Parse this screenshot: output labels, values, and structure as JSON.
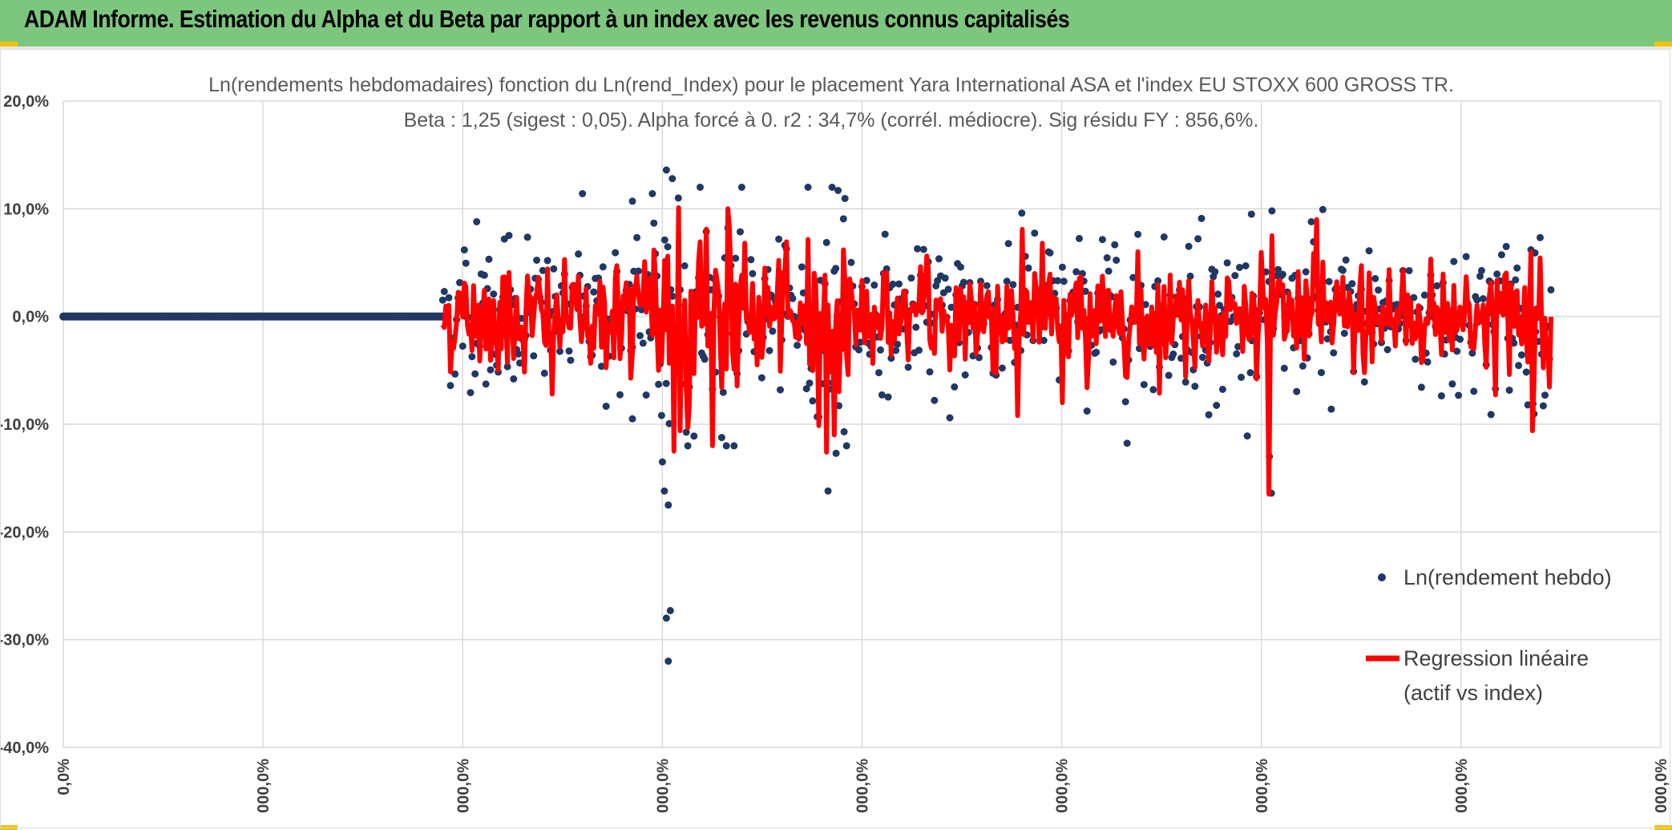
{
  "banner": {
    "title": "ADAM Informe. Estimation du Alpha et du Beta par rapport à un index avec les revenus connus capitalisés"
  },
  "colors": {
    "banner_bg": "#7dc67e",
    "scatter": "#203864",
    "regression": "#ff0000",
    "grid": "#d9d9d9",
    "accent": "#f2c200"
  },
  "chart_data": {
    "type": "scatter",
    "title": "Ln(rendements hebdomadaires) fonction du Ln(rend_Index) pour le placement Yara International ASA et l'index EU STOXX 600 GROSS TR.",
    "subtitle": "Beta : 1,25 (sigest : 0,05). Alpha forcé à 0. r2 : 34,7% (corrél. médiocre). Sig résidu FY : 856,6%.",
    "ylim": [
      -40,
      20
    ],
    "yticks": [
      "20,0%",
      "10,0%",
      "0,0%",
      "-10,0%",
      "-20,0%",
      "-30,0%",
      "-40,0%"
    ],
    "ytick_values": [
      20,
      10,
      0,
      -10,
      -20,
      -30,
      -40
    ],
    "xlim": [
      0,
      8
    ],
    "xticks": [
      "0,0%",
      "000,0%",
      "000,0%",
      "000,0%",
      "000,0%",
      "000,0%",
      "000,0%",
      "000,0%",
      "000,0%"
    ],
    "xtick_values": [
      0,
      1,
      2,
      3,
      4,
      5,
      6,
      7,
      8
    ],
    "legend": {
      "placement": "right",
      "items": [
        {
          "label": "Ln(rendement hebdo)",
          "kind": "marker"
        },
        {
          "label": "Regression linéaire",
          "label2": "(actif vs index)",
          "kind": "line"
        }
      ]
    },
    "series": [
      {
        "name": "Ln(rendement hebdo)",
        "kind": "scatter",
        "zero_segment": {
          "x_start": 0,
          "x_end": 1.9,
          "y": 0
        },
        "x_range": [
          1.9,
          7.45
        ],
        "n_points": 720,
        "approx_std": 3.2,
        "notable_points": [
          {
            "x": 3.02,
            "y": 13.6
          },
          {
            "x": 3.05,
            "y": 12.8
          },
          {
            "x": 3.08,
            "y": 11.0
          },
          {
            "x": 3.04,
            "y": -27.3
          },
          {
            "x": 3.02,
            "y": -28.0
          },
          {
            "x": 3.03,
            "y": -32.0
          },
          {
            "x": 3.03,
            "y": -17.5
          },
          {
            "x": 3.01,
            "y": -16.2
          },
          {
            "x": 3.0,
            "y": -13.5
          },
          {
            "x": 3.85,
            "y": 12.0
          },
          {
            "x": 3.88,
            "y": 11.7
          },
          {
            "x": 3.83,
            "y": -16.2
          },
          {
            "x": 3.87,
            "y": -12.7
          },
          {
            "x": 3.91,
            "y": -10.7
          },
          {
            "x": 2.6,
            "y": 11.4
          },
          {
            "x": 2.95,
            "y": 11.4
          },
          {
            "x": 2.85,
            "y": 10.7
          },
          {
            "x": 4.8,
            "y": 9.6
          },
          {
            "x": 5.95,
            "y": 9.5
          },
          {
            "x": 6.05,
            "y": -16.4
          },
          {
            "x": 6.04,
            "y": -13.0
          },
          {
            "x": 5.7,
            "y": 9.1
          },
          {
            "x": 7.37,
            "y": 5.9
          },
          {
            "x": 6.35,
            "y": -8.6
          },
          {
            "x": 7.15,
            "y": -9.1
          },
          {
            "x": 2.07,
            "y": 8.8
          },
          {
            "x": 2.85,
            "y": -9.5
          },
          {
            "x": 6.25,
            "y": 8.8
          },
          {
            "x": 7.36,
            "y": -8.1
          },
          {
            "x": 7.42,
            "y": -7.3
          }
        ]
      },
      {
        "name": "Regression linéaire (actif vs index)",
        "kind": "line",
        "x_range": [
          1.9,
          7.45
        ],
        "beta": 1.25,
        "notable_points": [
          {
            "x": 3.08,
            "y": 10.1
          },
          {
            "x": 3.06,
            "y": -12.5
          },
          {
            "x": 3.09,
            "y": -10.6
          },
          {
            "x": 3.82,
            "y": -12.6
          },
          {
            "x": 3.86,
            "y": -11.0
          },
          {
            "x": 4.78,
            "y": -9.2
          },
          {
            "x": 5.0,
            "y": -8.0
          },
          {
            "x": 6.05,
            "y": -18.1
          },
          {
            "x": 6.04,
            "y": -16.5
          },
          {
            "x": 6.28,
            "y": 9.0
          },
          {
            "x": 6.05,
            "y": 7.5
          },
          {
            "x": 7.36,
            "y": -10.6
          },
          {
            "x": 2.45,
            "y": -7.2
          },
          {
            "x": 4.8,
            "y": 8.1
          },
          {
            "x": 4.9,
            "y": 6.8
          }
        ]
      }
    ]
  }
}
